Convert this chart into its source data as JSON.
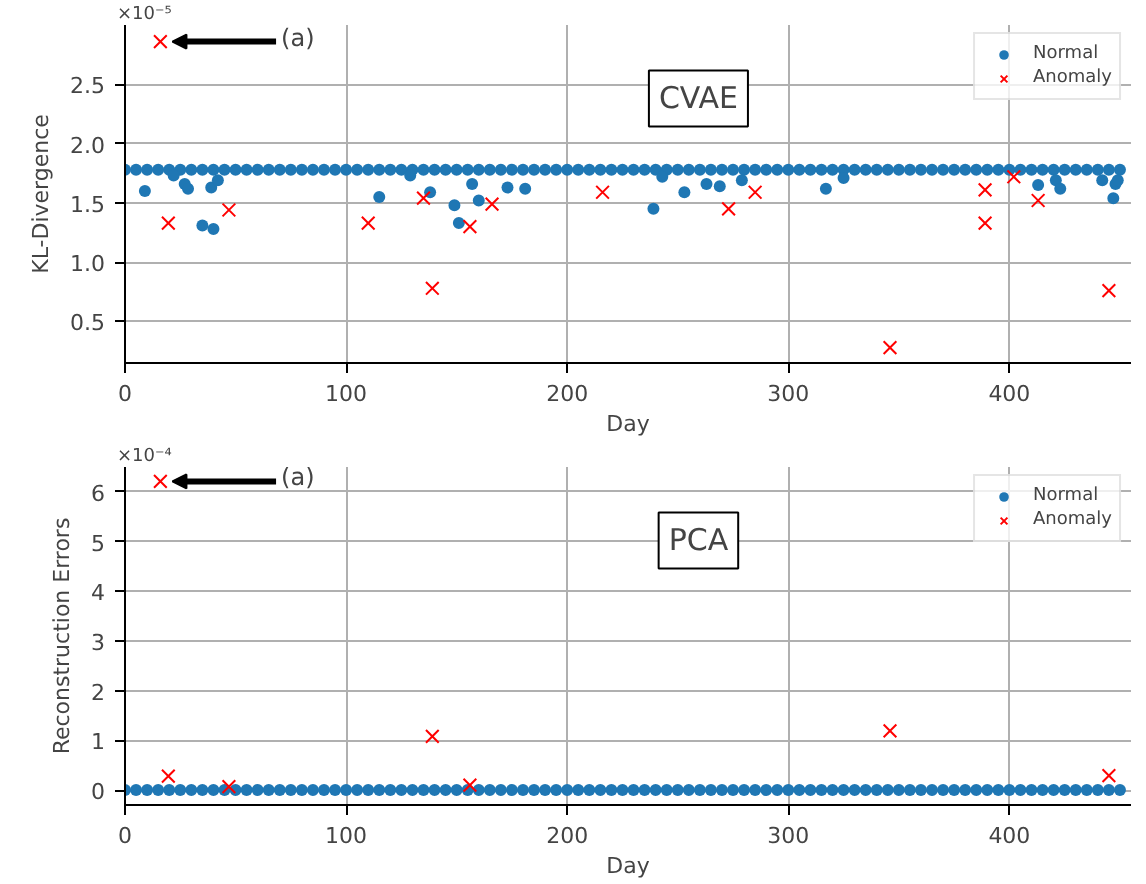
{
  "chart_data": [
    {
      "type": "scatter",
      "title": "CVAE",
      "xlabel": "Day",
      "ylabel": "KL-Divergence",
      "annotations": [
        "×10⁻⁵",
        {
          "text": "(a)",
          "x": 16,
          "y": 2.86
        }
      ],
      "xlim": [
        0,
        455
      ],
      "xticks": [
        0,
        100,
        200,
        300,
        400
      ],
      "ylim": [
        0.15,
        3.0
      ],
      "yticks": [
        {
          "value": 0.5,
          "label": "0.5"
        },
        {
          "value": 1.0,
          "label": "1.0"
        },
        {
          "value": 1.5,
          "label": "1.5"
        },
        {
          "value": 2.0,
          "label": "2.0"
        },
        {
          "value": 2.5,
          "label": "2.5"
        }
      ],
      "grid": true,
      "legend": "top right",
      "series": [
        {
          "name": "Normal",
          "color": "#1f77b4",
          "marker": "circle",
          "x": [
            0,
            5,
            10,
            15,
            20,
            25,
            30,
            35,
            40,
            45,
            50,
            55,
            60,
            65,
            70,
            75,
            80,
            85,
            90,
            95,
            100,
            105,
            110,
            115,
            120,
            125,
            130,
            135,
            140,
            145,
            150,
            155,
            160,
            165,
            170,
            175,
            180,
            185,
            190,
            195,
            200,
            205,
            210,
            215,
            220,
            225,
            230,
            235,
            240,
            245,
            250,
            255,
            260,
            265,
            270,
            275,
            280,
            285,
            290,
            295,
            300,
            305,
            310,
            315,
            320,
            325,
            330,
            335,
            340,
            345,
            350,
            355,
            360,
            365,
            370,
            375,
            380,
            385,
            390,
            395,
            400,
            405,
            410,
            415,
            420,
            425,
            430,
            435,
            440,
            445,
            450,
            9,
            22,
            27,
            28.5,
            35,
            39,
            40,
            42,
            115,
            129,
            138,
            149,
            151,
            157,
            160,
            173,
            181,
            239,
            243,
            253,
            263,
            269,
            279,
            317,
            325,
            413,
            421,
            423,
            442,
            447,
            448,
            449
          ],
          "values": [
            1.78,
            1.78,
            1.78,
            1.78,
            1.78,
            1.78,
            1.78,
            1.78,
            1.78,
            1.78,
            1.78,
            1.78,
            1.78,
            1.78,
            1.78,
            1.78,
            1.78,
            1.78,
            1.78,
            1.78,
            1.78,
            1.78,
            1.78,
            1.78,
            1.78,
            1.78,
            1.78,
            1.78,
            1.78,
            1.78,
            1.78,
            1.78,
            1.78,
            1.78,
            1.78,
            1.78,
            1.78,
            1.78,
            1.78,
            1.78,
            1.78,
            1.78,
            1.78,
            1.78,
            1.78,
            1.78,
            1.78,
            1.78,
            1.78,
            1.78,
            1.78,
            1.78,
            1.78,
            1.78,
            1.78,
            1.78,
            1.78,
            1.78,
            1.78,
            1.78,
            1.78,
            1.78,
            1.78,
            1.78,
            1.78,
            1.78,
            1.78,
            1.78,
            1.78,
            1.78,
            1.78,
            1.78,
            1.78,
            1.78,
            1.78,
            1.78,
            1.78,
            1.78,
            1.78,
            1.78,
            1.78,
            1.78,
            1.78,
            1.78,
            1.78,
            1.78,
            1.78,
            1.78,
            1.78,
            1.78,
            1.78,
            1.6,
            1.73,
            1.66,
            1.62,
            1.31,
            1.63,
            1.28,
            1.69,
            1.55,
            1.73,
            1.59,
            1.48,
            1.33,
            1.66,
            1.52,
            1.63,
            1.62,
            1.45,
            1.72,
            1.59,
            1.66,
            1.64,
            1.69,
            1.62,
            1.71,
            1.65,
            1.69,
            1.62,
            1.69,
            1.54,
            1.66,
            1.69
          ]
        },
        {
          "name": "Anomaly",
          "color": "#ff0000",
          "marker": "cross",
          "x": [
            16,
            19.6,
            47,
            110,
            135,
            139,
            156,
            166,
            216,
            273,
            285,
            346,
            389,
            389,
            402,
            413,
            445
          ],
          "values": [
            2.86,
            1.33,
            1.44,
            1.33,
            1.54,
            0.78,
            1.3,
            1.49,
            1.59,
            1.45,
            1.59,
            0.28,
            1.61,
            1.33,
            1.72,
            1.52,
            0.76
          ]
        }
      ]
    },
    {
      "type": "scatter",
      "title": "PCA",
      "xlabel": "Day",
      "ylabel": "Reconstruction Errors",
      "annotations": [
        "×10⁻⁴",
        {
          "text": "(a)",
          "x": 16,
          "y": 6.21
        }
      ],
      "xlim": [
        0,
        455
      ],
      "xticks": [
        0,
        100,
        200,
        300,
        400
      ],
      "ylim": [
        -0.3,
        6.5
      ],
      "yticks": [
        0,
        1,
        2,
        3,
        4,
        5,
        6
      ],
      "grid": true,
      "legend": "top right",
      "series": [
        {
          "name": "Normal",
          "color": "#1f77b4",
          "marker": "circle",
          "x": [
            0,
            5,
            10,
            15,
            20,
            25,
            30,
            35,
            40,
            45,
            50,
            55,
            60,
            65,
            70,
            75,
            80,
            85,
            90,
            95,
            100,
            105,
            110,
            115,
            120,
            125,
            130,
            135,
            140,
            145,
            150,
            155,
            160,
            165,
            170,
            175,
            180,
            185,
            190,
            195,
            200,
            205,
            210,
            215,
            220,
            225,
            230,
            235,
            240,
            245,
            250,
            255,
            260,
            265,
            270,
            275,
            280,
            285,
            290,
            295,
            300,
            305,
            310,
            315,
            320,
            325,
            330,
            335,
            340,
            345,
            350,
            355,
            360,
            365,
            370,
            375,
            380,
            385,
            390,
            395,
            400,
            405,
            410,
            415,
            420,
            425,
            430,
            435,
            440,
            445,
            450
          ],
          "values": [
            0,
            0,
            0,
            0,
            0,
            0,
            0,
            0,
            0,
            0,
            0,
            0,
            0,
            0,
            0,
            0,
            0,
            0,
            0,
            0,
            0,
            0,
            0,
            0,
            0,
            0,
            0,
            0,
            0,
            0,
            0,
            0,
            0,
            0,
            0,
            0,
            0,
            0,
            0,
            0,
            0,
            0,
            0,
            0,
            0,
            0,
            0,
            0,
            0,
            0,
            0,
            0,
            0,
            0,
            0,
            0,
            0,
            0,
            0,
            0,
            0,
            0,
            0,
            0,
            0,
            0,
            0,
            0,
            0,
            0,
            0,
            0,
            0,
            0,
            0,
            0,
            0,
            0,
            0,
            0,
            0,
            0,
            0,
            0,
            0,
            0,
            0,
            0,
            0,
            0,
            0
          ]
        },
        {
          "name": "Anomaly",
          "color": "#ff0000",
          "marker": "cross",
          "x": [
            16,
            19.6,
            47,
            139,
            156,
            346,
            445
          ],
          "values": [
            6.21,
            0.28,
            0.07,
            1.08,
            0.1,
            1.19,
            0.29
          ]
        }
      ]
    }
  ]
}
